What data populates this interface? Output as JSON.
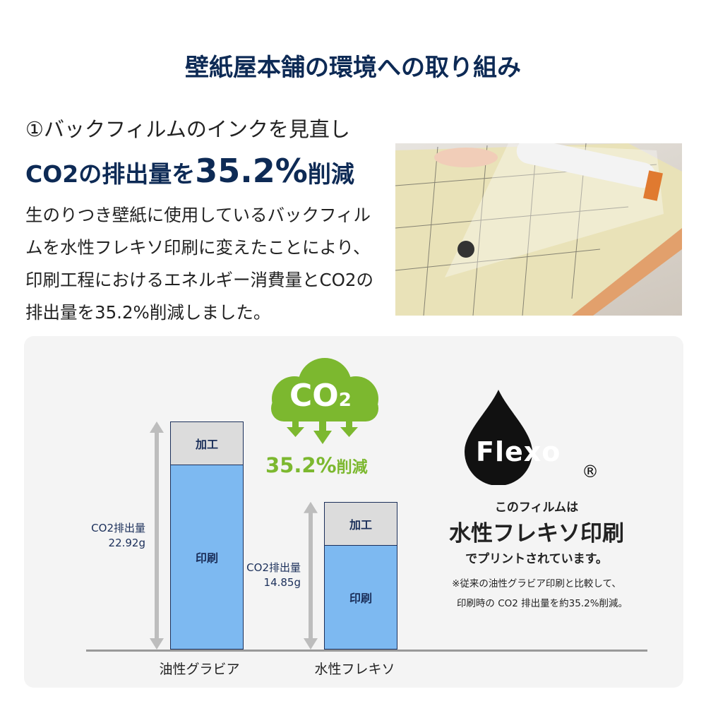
{
  "header": {
    "title": "壁紙屋本舗の環境への取り組み"
  },
  "section": {
    "subtitle": "①バックフィルムのインクを見直し",
    "headline_prefix": "CO2の排出量を",
    "headline_value": "35.2%",
    "headline_suffix": "削減",
    "body": "生のりつき壁紙に使用しているバックフィルムを水性フレキソ印刷に変えたことにより、印刷工程におけるエネルギー消費量とCO2の排出量を35.2%削減しました。"
  },
  "badge": {
    "co2_text": "CO",
    "co2_sub": "2",
    "reduction": "35.2%",
    "reduction_suffix": "削減",
    "color": "#7cb82f"
  },
  "flexo": {
    "logo_text": "Flexo",
    "registered": "®",
    "line1": "このフィルムは",
    "line2": "水性フレキソ印刷",
    "line3": "でプリントされています。",
    "note1": "※従来の油性グラビア印刷と比較して、",
    "note2": "印刷時の CO2 排出量を約35.2%削減。"
  },
  "chart_data": {
    "type": "bar",
    "stacked": true,
    "categories": [
      "油性グラビア",
      "水性フレキソ"
    ],
    "segment_labels": [
      "印刷",
      "加工"
    ],
    "totals": [
      22.92,
      14.85
    ],
    "total_labels": [
      {
        "line1": "CO2排出量",
        "line2": "22.92g"
      },
      {
        "line1": "CO2排出量",
        "line2": "14.85g"
      }
    ],
    "series": [
      {
        "name": "印刷",
        "values": [
          18.6,
          10.5
        ],
        "color": "#7db9f1"
      },
      {
        "name": "加工",
        "values": [
          4.3,
          4.3
        ],
        "color": "#dcdcdc"
      }
    ],
    "ylim": [
      0,
      22.92
    ],
    "grid": false
  }
}
